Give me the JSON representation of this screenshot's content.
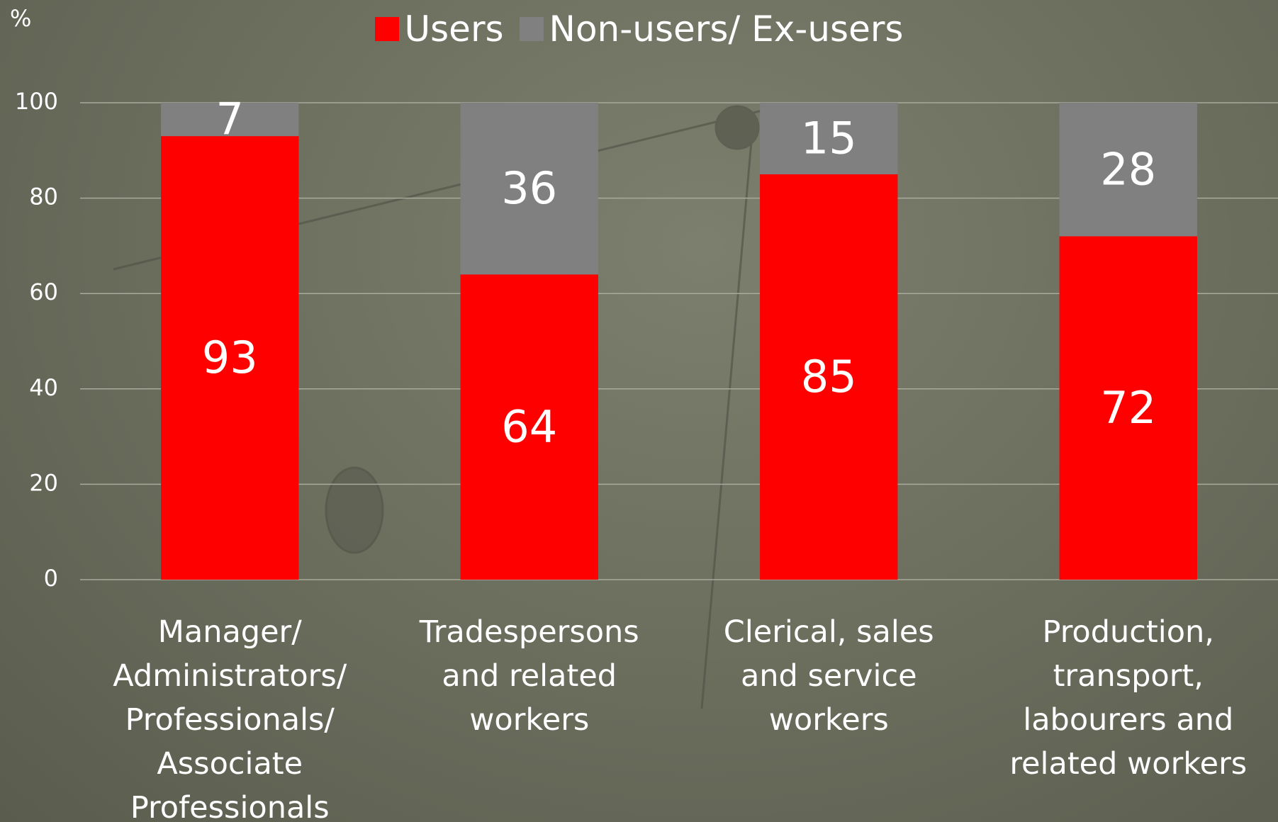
{
  "chart_data": {
    "type": "stacked_bar",
    "y_label": "%",
    "categories": [
      "Manager/ Administrators/ Professionals/ Associate Professionals",
      "Tradespersons and related workers",
      "Clerical, sales and service workers",
      "Production, transport, labourers and related workers"
    ],
    "series": [
      {
        "name": "Users",
        "color": "#ff0000",
        "values": [
          93,
          64,
          85,
          72
        ]
      },
      {
        "name": "Non-users/ Ex-users",
        "color": "#808080",
        "values": [
          7,
          36,
          15,
          28
        ]
      }
    ],
    "ylim": [
      0,
      100
    ],
    "yticks": [
      0,
      20,
      40,
      60,
      80,
      100
    ],
    "grid": true,
    "legend": "top"
  }
}
